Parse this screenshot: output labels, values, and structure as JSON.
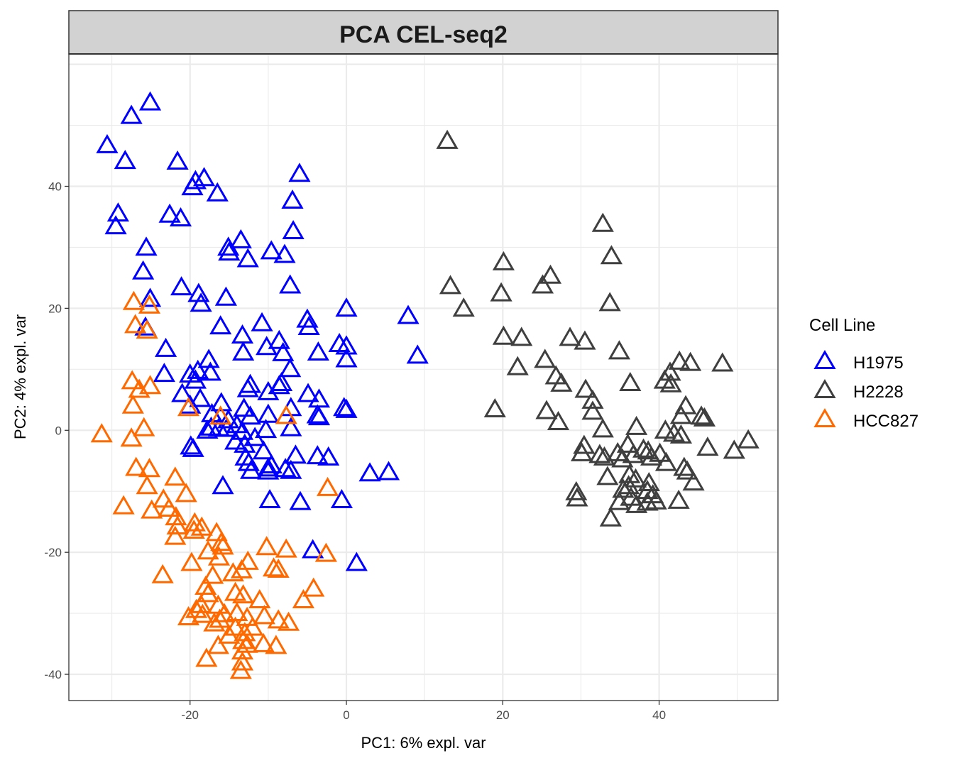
{
  "chart_data": {
    "type": "scatter",
    "title": "PCA CEL-seq2",
    "xlabel": "PC1: 6% expl. var",
    "ylabel": "PC2: 4% expl. var",
    "xlim": [
      -35.5,
      55.2
    ],
    "ylim": [
      -44.3,
      61.7
    ],
    "xticks": [
      -20,
      0,
      20,
      40
    ],
    "yticks": [
      -40,
      -20,
      0,
      20,
      40
    ],
    "xtick_labels": [
      "-20",
      "0",
      "20",
      "40"
    ],
    "ytick_labels": [
      "-40",
      "-20",
      "0",
      "20",
      "40"
    ],
    "grid": true,
    "marker": "open-triangle",
    "legend": {
      "title": "Cell Line",
      "position": "right"
    },
    "series": [
      {
        "name": "H1975",
        "color": "#0000ff",
        "points": [
          [
            -25.1,
            53.6
          ],
          [
            -27.5,
            51.4
          ],
          [
            -30.6,
            46.6
          ],
          [
            -28.3,
            44.0
          ],
          [
            -21.6,
            43.9
          ],
          [
            -18.2,
            41.2
          ],
          [
            -19.3,
            40.7
          ],
          [
            -19.7,
            39.7
          ],
          [
            -16.5,
            38.7
          ],
          [
            -6.0,
            41.9
          ],
          [
            -6.9,
            37.5
          ],
          [
            -29.2,
            35.4
          ],
          [
            -29.5,
            33.3
          ],
          [
            -22.6,
            35.2
          ],
          [
            -21.2,
            34.6
          ],
          [
            -6.8,
            32.5
          ],
          [
            -13.5,
            31.0
          ],
          [
            -15.1,
            29.8
          ],
          [
            -15.0,
            29.0
          ],
          [
            -25.6,
            29.8
          ],
          [
            -12.6,
            27.9
          ],
          [
            -9.6,
            29.2
          ],
          [
            -7.9,
            28.6
          ],
          [
            -26.0,
            25.9
          ],
          [
            -7.2,
            23.6
          ],
          [
            -21.1,
            23.3
          ],
          [
            -18.9,
            22.2
          ],
          [
            -25.1,
            21.4
          ],
          [
            -18.6,
            20.6
          ],
          [
            -15.4,
            21.6
          ],
          [
            0.0,
            19.8
          ],
          [
            7.9,
            18.6
          ],
          [
            -5.0,
            18.0
          ],
          [
            -4.8,
            16.8
          ],
          [
            -25.7,
            16.7
          ],
          [
            -16.1,
            16.9
          ],
          [
            -10.8,
            17.4
          ],
          [
            -13.3,
            15.4
          ],
          [
            -8.6,
            14.5
          ],
          [
            -0.9,
            14.0
          ],
          [
            0.0,
            13.6
          ],
          [
            -10.2,
            13.5
          ],
          [
            -23.1,
            13.2
          ],
          [
            -13.2,
            12.6
          ],
          [
            -3.6,
            12.6
          ],
          [
            -8.1,
            12.5
          ],
          [
            0.0,
            11.5
          ],
          [
            9.1,
            12.1
          ],
          [
            -17.6,
            11.4
          ],
          [
            -19.0,
            9.6
          ],
          [
            -23.3,
            9.1
          ],
          [
            -20.0,
            9.0
          ],
          [
            -17.4,
            9.3
          ],
          [
            -7.2,
            9.9
          ],
          [
            -19.3,
            8.0
          ],
          [
            -12.3,
            7.3
          ],
          [
            -12.6,
            6.6
          ],
          [
            -10.0,
            6.1
          ],
          [
            -8.6,
            7.1
          ],
          [
            -8.3,
            7.6
          ],
          [
            -21.0,
            5.8
          ],
          [
            -4.9,
            5.8
          ],
          [
            -18.7,
            5.0
          ],
          [
            -3.5,
            4.9
          ],
          [
            -16.0,
            4.3
          ],
          [
            -20.0,
            3.9
          ],
          [
            -7.1,
            3.5
          ],
          [
            -0.3,
            3.5
          ],
          [
            0.0,
            3.2
          ],
          [
            -13.1,
            3.4
          ],
          [
            -17.2,
            2.5
          ],
          [
            -3.7,
            2.3
          ],
          [
            -3.5,
            2.0
          ],
          [
            -10.0,
            2.4
          ],
          [
            -12.3,
            2.1
          ],
          [
            -15.1,
            1.5
          ],
          [
            -14.0,
            0.7
          ],
          [
            -17.3,
            0.3
          ],
          [
            -16.3,
            0.2
          ],
          [
            -15.3,
            0.1
          ],
          [
            -7.1,
            0.2
          ],
          [
            -10.3,
            -0.1
          ],
          [
            -13.3,
            -0.4
          ],
          [
            -17.8,
            -0.2
          ],
          [
            -11.7,
            -1.4
          ],
          [
            -14.2,
            -2.0
          ],
          [
            -19.9,
            -2.8
          ],
          [
            -19.6,
            -3.2
          ],
          [
            -13.0,
            -2.5
          ],
          [
            -10.6,
            -3.6
          ],
          [
            -12.9,
            -4.6
          ],
          [
            -6.5,
            -4.3
          ],
          [
            -3.7,
            -4.4
          ],
          [
            -2.3,
            -4.6
          ],
          [
            -12.5,
            -5.5
          ],
          [
            -9.6,
            -5.9
          ],
          [
            -10.0,
            -6.4
          ],
          [
            -12.2,
            -6.8
          ],
          [
            -7.8,
            -6.5
          ],
          [
            -7.1,
            -6.8
          ],
          [
            -10.0,
            -6.9
          ],
          [
            -15.8,
            -9.3
          ],
          [
            -9.8,
            -11.6
          ],
          [
            -5.9,
            -11.9
          ],
          [
            -0.6,
            -11.6
          ],
          [
            3.0,
            -7.2
          ],
          [
            5.4,
            -7.0
          ],
          [
            -4.3,
            -19.8
          ],
          [
            1.3,
            -21.9
          ]
        ]
      },
      {
        "name": "H2228",
        "color": "#3f3f3f",
        "points": [
          [
            12.9,
            47.3
          ],
          [
            32.8,
            33.7
          ],
          [
            33.9,
            28.4
          ],
          [
            20.1,
            27.4
          ],
          [
            26.1,
            25.2
          ],
          [
            25.1,
            23.6
          ],
          [
            13.3,
            23.5
          ],
          [
            19.8,
            22.3
          ],
          [
            33.7,
            20.7
          ],
          [
            15.0,
            19.8
          ],
          [
            20.1,
            15.2
          ],
          [
            22.4,
            15.0
          ],
          [
            28.6,
            15.0
          ],
          [
            30.5,
            14.4
          ],
          [
            34.9,
            12.8
          ],
          [
            25.4,
            11.4
          ],
          [
            42.6,
            11.1
          ],
          [
            44.0,
            10.9
          ],
          [
            48.1,
            10.8
          ],
          [
            21.9,
            10.2
          ],
          [
            41.4,
            9.3
          ],
          [
            26.8,
            8.7
          ],
          [
            40.7,
            8.0
          ],
          [
            36.3,
            7.6
          ],
          [
            41.5,
            7.4
          ],
          [
            27.5,
            7.5
          ],
          [
            30.6,
            6.5
          ],
          [
            31.5,
            4.7
          ],
          [
            43.4,
            3.8
          ],
          [
            19.0,
            3.3
          ],
          [
            25.6,
            3.0
          ],
          [
            31.5,
            2.9
          ],
          [
            42.8,
            2.2
          ],
          [
            45.4,
            2.1
          ],
          [
            45.8,
            1.8
          ],
          [
            27.1,
            1.2
          ],
          [
            37.1,
            0.4
          ],
          [
            32.8,
            0.0
          ],
          [
            40.8,
            -0.2
          ],
          [
            41.9,
            -0.7
          ],
          [
            42.8,
            -1.0
          ],
          [
            51.4,
            -1.8
          ],
          [
            30.4,
            -2.7
          ],
          [
            36.0,
            -2.5
          ],
          [
            46.2,
            -3.0
          ],
          [
            49.6,
            -3.5
          ],
          [
            30.1,
            -3.9
          ],
          [
            32.4,
            -4.2
          ],
          [
            33.0,
            -4.6
          ],
          [
            34.7,
            -3.9
          ],
          [
            38.0,
            -3.3
          ],
          [
            38.6,
            -3.6
          ],
          [
            39.0,
            -4.6
          ],
          [
            40.1,
            -4.0
          ],
          [
            36.7,
            -4.2
          ],
          [
            35.3,
            -4.9
          ],
          [
            40.9,
            -5.5
          ],
          [
            43.2,
            -6.3
          ],
          [
            43.6,
            -6.9
          ],
          [
            33.4,
            -7.8
          ],
          [
            36.2,
            -7.5
          ],
          [
            37.0,
            -8.2
          ],
          [
            36.1,
            -9.3
          ],
          [
            38.7,
            -8.8
          ],
          [
            44.4,
            -8.7
          ],
          [
            35.4,
            -9.9
          ],
          [
            38.5,
            -10.1
          ],
          [
            39.2,
            -10.8
          ],
          [
            29.4,
            -10.3
          ],
          [
            29.5,
            -11.3
          ],
          [
            34.9,
            -11.9
          ],
          [
            38.5,
            -12.0
          ],
          [
            39.6,
            -11.8
          ],
          [
            42.5,
            -11.7
          ],
          [
            33.8,
            -14.6
          ],
          [
            37.1,
            -12.4
          ],
          [
            36.4,
            -11.2
          ]
        ]
      },
      {
        "name": "HCC827",
        "color": "#ff6a00",
        "points": [
          [
            -27.2,
            20.9
          ],
          [
            -25.2,
            20.3
          ],
          [
            -27.0,
            17.1
          ],
          [
            -25.5,
            16.2
          ],
          [
            -27.4,
            7.9
          ],
          [
            -25.1,
            7.1
          ],
          [
            -26.5,
            6.5
          ],
          [
            -27.3,
            3.9
          ],
          [
            -20.2,
            3.5
          ],
          [
            -16.1,
            2.1
          ],
          [
            -7.7,
            2.2
          ],
          [
            -25.9,
            0.2
          ],
          [
            -31.3,
            -0.8
          ],
          [
            -27.5,
            -1.5
          ],
          [
            -26.9,
            -6.3
          ],
          [
            -25.2,
            -6.5
          ],
          [
            -21.9,
            -7.9
          ],
          [
            -25.5,
            -9.3
          ],
          [
            -2.4,
            -9.6
          ],
          [
            -23.4,
            -11.5
          ],
          [
            -20.5,
            -10.6
          ],
          [
            -28.5,
            -12.6
          ],
          [
            -24.9,
            -13.3
          ],
          [
            -22.7,
            -13.0
          ],
          [
            -21.8,
            -14.4
          ],
          [
            -19.4,
            -15.4
          ],
          [
            -21.6,
            -15.9
          ],
          [
            -19.5,
            -16.6
          ],
          [
            -18.5,
            -16.1
          ],
          [
            -16.6,
            -17.0
          ],
          [
            -21.9,
            -17.6
          ],
          [
            -15.8,
            -19.2
          ],
          [
            -16.0,
            -18.6
          ],
          [
            -17.7,
            -20.0
          ],
          [
            -10.2,
            -19.3
          ],
          [
            -7.7,
            -19.7
          ],
          [
            -2.6,
            -20.4
          ],
          [
            -19.8,
            -21.9
          ],
          [
            -16.3,
            -21.0
          ],
          [
            -12.6,
            -21.7
          ],
          [
            -9.3,
            -22.8
          ],
          [
            -8.7,
            -23.0
          ],
          [
            -23.5,
            -23.9
          ],
          [
            -17.1,
            -24.0
          ],
          [
            -14.5,
            -23.6
          ],
          [
            -13.4,
            -23.1
          ],
          [
            -4.2,
            -26.1
          ],
          [
            -5.5,
            -28.0
          ],
          [
            -18.0,
            -25.8
          ],
          [
            -17.7,
            -27.0
          ],
          [
            -14.2,
            -26.8
          ],
          [
            -13.2,
            -27.2
          ],
          [
            -11.1,
            -28.0
          ],
          [
            -19.2,
            -29.6
          ],
          [
            -18.6,
            -28.8
          ],
          [
            -16.4,
            -28.9
          ],
          [
            -18.4,
            -30.4
          ],
          [
            -20.2,
            -30.8
          ],
          [
            -15.6,
            -30.3
          ],
          [
            -14.0,
            -30.1
          ],
          [
            -12.7,
            -30.9
          ],
          [
            -10.5,
            -30.6
          ],
          [
            -8.7,
            -31.3
          ],
          [
            -7.4,
            -31.7
          ],
          [
            -16.2,
            -31.2
          ],
          [
            -16.9,
            -31.8
          ],
          [
            -14.2,
            -32.5
          ],
          [
            -13.0,
            -33.4
          ],
          [
            -12.0,
            -32.5
          ],
          [
            -15.0,
            -33.8
          ],
          [
            -13.2,
            -34.7
          ],
          [
            -12.7,
            -35.3
          ],
          [
            -16.4,
            -35.5
          ],
          [
            -10.6,
            -35.2
          ],
          [
            -9.0,
            -35.5
          ],
          [
            -13.3,
            -36.4
          ],
          [
            -17.9,
            -37.6
          ],
          [
            -13.3,
            -38.2
          ],
          [
            -13.5,
            -39.6
          ]
        ]
      }
    ]
  }
}
